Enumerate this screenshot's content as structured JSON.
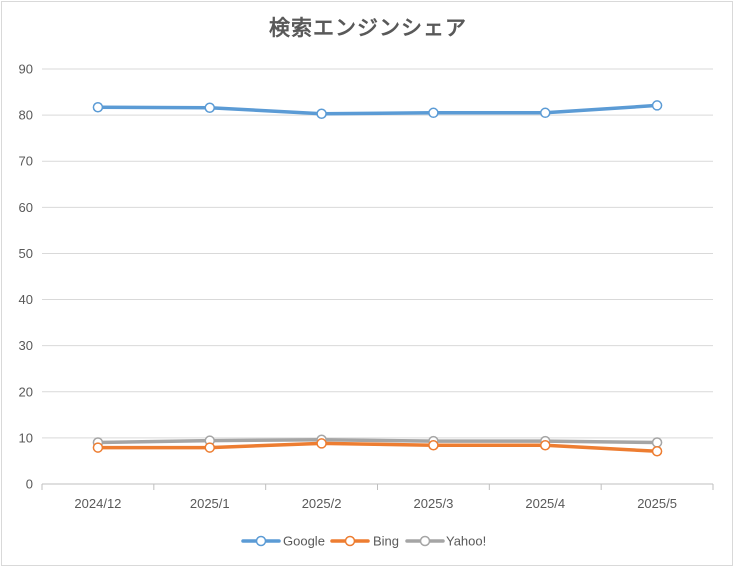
{
  "chart_data": {
    "type": "line",
    "title": "検索エンジンシェア",
    "categories": [
      "2024/12",
      "2025/1",
      "2025/2",
      "2025/3",
      "2025/4",
      "2025/5"
    ],
    "ylim": [
      0,
      90
    ],
    "yticks": [
      0,
      10,
      20,
      30,
      40,
      50,
      60,
      70,
      80,
      90
    ],
    "grid": true,
    "legend_position": "bottom",
    "series": [
      {
        "name": "Google",
        "color": "#5b9bd5",
        "values": [
          81.7,
          81.6,
          80.3,
          80.5,
          80.5,
          82.1
        ]
      },
      {
        "name": "Bing",
        "color": "#ed7d31",
        "values": [
          7.9,
          7.9,
          8.8,
          8.4,
          8.4,
          7.1
        ]
      },
      {
        "name": "Yahoo!",
        "color": "#a5a5a5",
        "values": [
          9.0,
          9.4,
          9.6,
          9.3,
          9.3,
          9.0
        ]
      }
    ]
  }
}
